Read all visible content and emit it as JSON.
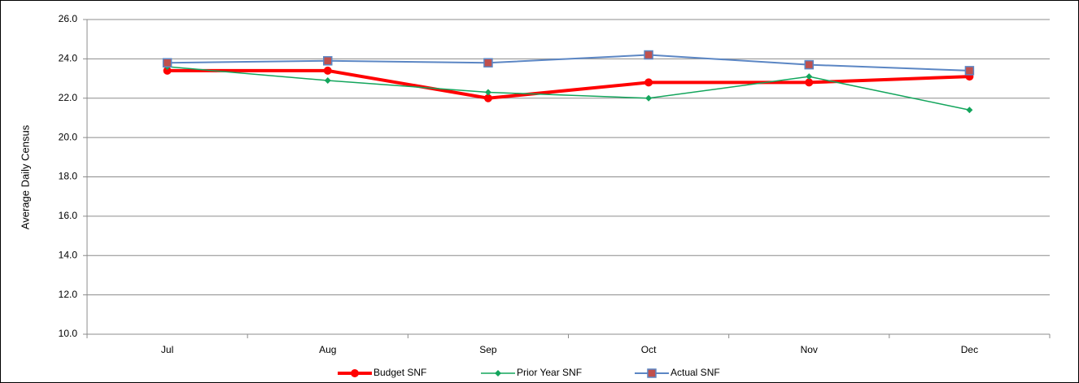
{
  "chart_data": {
    "type": "line",
    "y_label": "Average Daily Census",
    "categories": [
      "Jul",
      "Aug",
      "Sep",
      "Oct",
      "Nov",
      "Dec"
    ],
    "series": [
      {
        "name": "Budget SNF",
        "color": "#ff0000",
        "marker": "circle",
        "width": 4,
        "values": [
          23.4,
          23.4,
          22.0,
          22.8,
          22.8,
          23.1
        ]
      },
      {
        "name": "Prior Year SNF",
        "color": "#13a55c",
        "marker": "diamond",
        "width": 1.5,
        "values": [
          23.6,
          22.9,
          22.3,
          22.0,
          23.1,
          21.4
        ]
      },
      {
        "name": "Actual SNF",
        "color": "#5b86c4",
        "marker": "square",
        "width": 2,
        "values": [
          23.8,
          23.9,
          23.8,
          24.2,
          23.7,
          23.4
        ]
      }
    ],
    "ylim": [
      10,
      26
    ],
    "yticks": [
      {
        "value": 10,
        "label": "10.0"
      },
      {
        "value": 12,
        "label": "12.0"
      },
      {
        "value": 14,
        "label": "14.0"
      },
      {
        "value": 16,
        "label": "16.0"
      },
      {
        "value": 18,
        "label": "18.0"
      },
      {
        "value": 20,
        "label": "20.0"
      },
      {
        "value": 22,
        "label": "22.0"
      },
      {
        "value": 24,
        "label": "24.0"
      },
      {
        "value": 26,
        "label": "26.0"
      }
    ],
    "grid": true
  }
}
